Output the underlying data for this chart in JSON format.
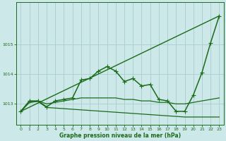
{
  "xlabel": "Graphe pression niveau de la mer (hPa)",
  "xlim": [
    -0.5,
    23.5
  ],
  "ylim": [
    1012.3,
    1016.4
  ],
  "yticks": [
    1013,
    1014,
    1015
  ],
  "xticks": [
    0,
    1,
    2,
    3,
    4,
    5,
    6,
    7,
    8,
    9,
    10,
    11,
    12,
    13,
    14,
    15,
    16,
    17,
    18,
    19,
    20,
    21,
    22,
    23
  ],
  "bg_color": "#cce8e8",
  "grid_color": "#aacccc",
  "line_color": "#1a6b1a",
  "series": [
    {
      "name": "main_with_markers",
      "x": [
        0,
        1,
        2,
        3,
        4,
        5,
        6,
        7,
        8,
        9,
        10,
        11,
        12,
        13,
        14,
        15,
        16,
        17,
        18,
        19,
        20,
        21,
        22,
        23
      ],
      "y": [
        1012.75,
        1013.1,
        1013.1,
        1012.9,
        1013.1,
        1013.15,
        1013.2,
        1013.8,
        1013.85,
        1014.1,
        1014.25,
        1014.1,
        1013.75,
        1013.85,
        1013.6,
        1013.65,
        1013.15,
        1013.1,
        1012.75,
        1012.75,
        1013.3,
        1014.05,
        1015.05,
        1015.95
      ],
      "marker": "+",
      "markersize": 4,
      "linewidth": 1.1
    },
    {
      "name": "diagonal_straight",
      "x": [
        0,
        23
      ],
      "y": [
        1012.75,
        1015.95
      ],
      "marker": "None",
      "markersize": 0,
      "linewidth": 1.0
    },
    {
      "name": "flat_upper",
      "x": [
        0,
        1,
        2,
        3,
        4,
        5,
        6,
        7,
        8,
        9,
        10,
        11,
        12,
        13,
        14,
        15,
        16,
        17,
        18,
        19,
        20,
        21,
        22,
        23
      ],
      "y": [
        1012.75,
        1013.05,
        1013.1,
        1013.0,
        1013.05,
        1013.1,
        1013.15,
        1013.2,
        1013.2,
        1013.2,
        1013.2,
        1013.2,
        1013.15,
        1013.15,
        1013.1,
        1013.1,
        1013.05,
        1013.05,
        1013.0,
        1013.0,
        1013.05,
        1013.1,
        1013.15,
        1013.2
      ],
      "marker": "None",
      "markersize": 0,
      "linewidth": 0.9
    },
    {
      "name": "declining_lower",
      "x": [
        0,
        1,
        2,
        3,
        4,
        5,
        6,
        7,
        8,
        9,
        10,
        11,
        12,
        13,
        14,
        15,
        16,
        17,
        18,
        19,
        20,
        21,
        22,
        23
      ],
      "y": [
        1012.75,
        1013.05,
        1013.08,
        1012.88,
        1012.86,
        1012.84,
        1012.82,
        1012.8,
        1012.78,
        1012.76,
        1012.74,
        1012.72,
        1012.7,
        1012.68,
        1012.66,
        1012.64,
        1012.62,
        1012.6,
        1012.58,
        1012.56,
        1012.56,
        1012.56,
        1012.56,
        1012.56
      ],
      "marker": "None",
      "markersize": 0,
      "linewidth": 0.9
    }
  ]
}
